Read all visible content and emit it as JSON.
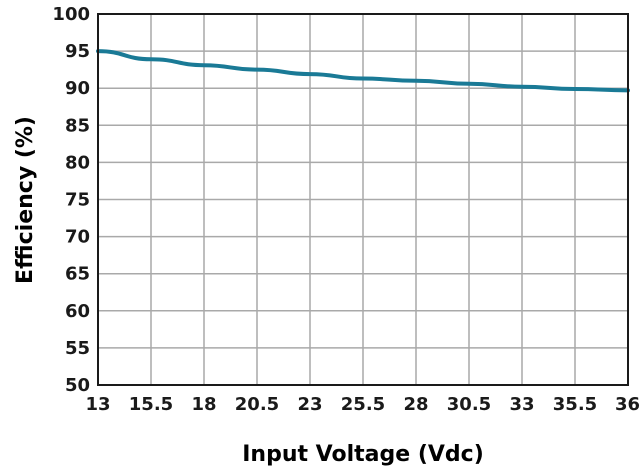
{
  "chart_data": {
    "type": "line",
    "xlabel": "Input Voltage (Vdc)",
    "ylabel": "Efficiency (%)",
    "xlim": [
      13,
      36
    ],
    "ylim": [
      50,
      100
    ],
    "x_ticks": [
      "13",
      "15.5",
      "18",
      "20.5",
      "23",
      "25.5",
      "28",
      "30.5",
      "33",
      "35.5",
      "36"
    ],
    "y_ticks": [
      "50",
      "55",
      "60",
      "65",
      "70",
      "75",
      "80",
      "85",
      "90",
      "95",
      "100"
    ],
    "grid": true,
    "colors": {
      "line": "#1a7a96",
      "grid": "#a9a9a9",
      "frame": "#1a1a1a"
    },
    "series": [
      {
        "x": [
          13,
          15.5,
          18,
          20.5,
          23,
          25.5,
          28,
          30.5,
          33,
          35.5,
          36
        ],
        "y": [
          95.0,
          93.9,
          93.1,
          92.5,
          91.9,
          91.3,
          91.0,
          90.6,
          90.2,
          89.9,
          89.7
        ]
      }
    ]
  }
}
